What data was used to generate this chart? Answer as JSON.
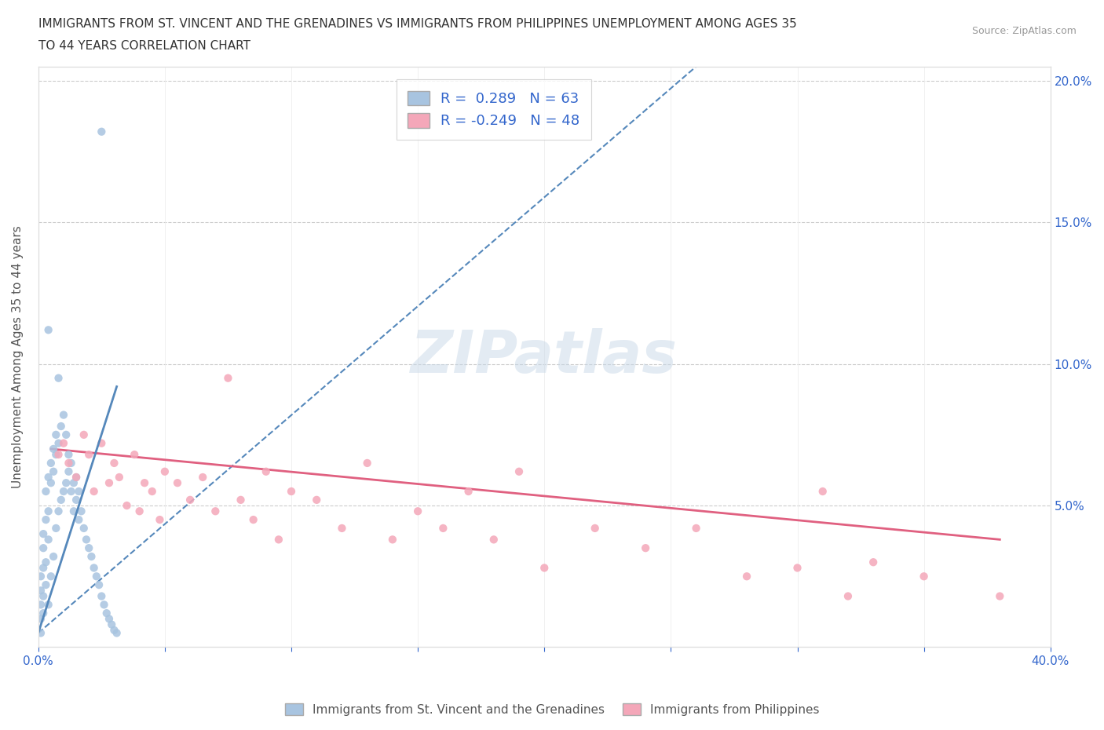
{
  "title_line1": "IMMIGRANTS FROM ST. VINCENT AND THE GRENADINES VS IMMIGRANTS FROM PHILIPPINES UNEMPLOYMENT AMONG AGES 35",
  "title_line2": "TO 44 YEARS CORRELATION CHART",
  "source_text": "Source: ZipAtlas.com",
  "ylabel": "Unemployment Among Ages 35 to 44 years",
  "xlim": [
    0.0,
    0.4
  ],
  "ylim": [
    0.0,
    0.205
  ],
  "xticks": [
    0.0,
    0.05,
    0.1,
    0.15,
    0.2,
    0.25,
    0.3,
    0.35,
    0.4
  ],
  "xtick_labels": [
    "0.0%",
    "",
    "",
    "",
    "",
    "",
    "",
    "",
    "40.0%"
  ],
  "yticks": [
    0.0,
    0.05,
    0.1,
    0.15,
    0.2
  ],
  "ytick_labels_right": [
    "",
    "5.0%",
    "10.0%",
    "15.0%",
    "20.0%"
  ],
  "legend_r1": "R =  0.289   N = 63",
  "legend_r2": "R = -0.249   N = 48",
  "color_blue": "#a8c4e0",
  "color_pink": "#f4a7b9",
  "trendline_blue": "#5588bb",
  "trendline_pink": "#e06080",
  "watermark": "ZIPatlas",
  "blue_scatter_x": [
    0.001,
    0.001,
    0.001,
    0.001,
    0.001,
    0.002,
    0.002,
    0.002,
    0.002,
    0.002,
    0.003,
    0.003,
    0.003,
    0.003,
    0.004,
    0.004,
    0.004,
    0.004,
    0.005,
    0.005,
    0.005,
    0.006,
    0.006,
    0.006,
    0.007,
    0.007,
    0.007,
    0.008,
    0.008,
    0.009,
    0.009,
    0.01,
    0.01,
    0.011,
    0.011,
    0.012,
    0.012,
    0.013,
    0.013,
    0.014,
    0.014,
    0.015,
    0.015,
    0.016,
    0.016,
    0.017,
    0.018,
    0.019,
    0.02,
    0.021,
    0.022,
    0.023,
    0.024,
    0.025,
    0.026,
    0.027,
    0.028,
    0.029,
    0.03,
    0.031,
    0.004,
    0.008,
    0.025
  ],
  "blue_scatter_y": [
    0.01,
    0.02,
    0.015,
    0.025,
    0.005,
    0.018,
    0.028,
    0.035,
    0.04,
    0.012,
    0.045,
    0.055,
    0.03,
    0.022,
    0.048,
    0.06,
    0.038,
    0.015,
    0.058,
    0.065,
    0.025,
    0.062,
    0.07,
    0.032,
    0.068,
    0.075,
    0.042,
    0.072,
    0.048,
    0.078,
    0.052,
    0.082,
    0.055,
    0.075,
    0.058,
    0.068,
    0.062,
    0.065,
    0.055,
    0.058,
    0.048,
    0.06,
    0.052,
    0.055,
    0.045,
    0.048,
    0.042,
    0.038,
    0.035,
    0.032,
    0.028,
    0.025,
    0.022,
    0.018,
    0.015,
    0.012,
    0.01,
    0.008,
    0.006,
    0.005,
    0.112,
    0.095,
    0.182
  ],
  "blue_trend_x0": 0.0,
  "blue_trend_x1": 0.031,
  "blue_trend_y0": 0.005,
  "blue_trend_y1": 0.092,
  "blue_trend_ext_x1": 0.26,
  "blue_trend_ext_y1": 0.205,
  "pink_scatter_x": [
    0.008,
    0.01,
    0.012,
    0.015,
    0.018,
    0.02,
    0.022,
    0.025,
    0.028,
    0.03,
    0.032,
    0.035,
    0.038,
    0.04,
    0.042,
    0.045,
    0.048,
    0.05,
    0.055,
    0.06,
    0.065,
    0.07,
    0.075,
    0.08,
    0.085,
    0.09,
    0.095,
    0.1,
    0.11,
    0.12,
    0.13,
    0.14,
    0.15,
    0.16,
    0.17,
    0.18,
    0.19,
    0.2,
    0.22,
    0.24,
    0.26,
    0.28,
    0.3,
    0.31,
    0.32,
    0.33,
    0.35,
    0.38
  ],
  "pink_scatter_y": [
    0.068,
    0.072,
    0.065,
    0.06,
    0.075,
    0.068,
    0.055,
    0.072,
    0.058,
    0.065,
    0.06,
    0.05,
    0.068,
    0.048,
    0.058,
    0.055,
    0.045,
    0.062,
    0.058,
    0.052,
    0.06,
    0.048,
    0.095,
    0.052,
    0.045,
    0.062,
    0.038,
    0.055,
    0.052,
    0.042,
    0.065,
    0.038,
    0.048,
    0.042,
    0.055,
    0.038,
    0.062,
    0.028,
    0.042,
    0.035,
    0.042,
    0.025,
    0.028,
    0.055,
    0.018,
    0.03,
    0.025,
    0.018
  ],
  "pink_trend_x0": 0.005,
  "pink_trend_x1": 0.38,
  "pink_trend_y0": 0.07,
  "pink_trend_y1": 0.038
}
